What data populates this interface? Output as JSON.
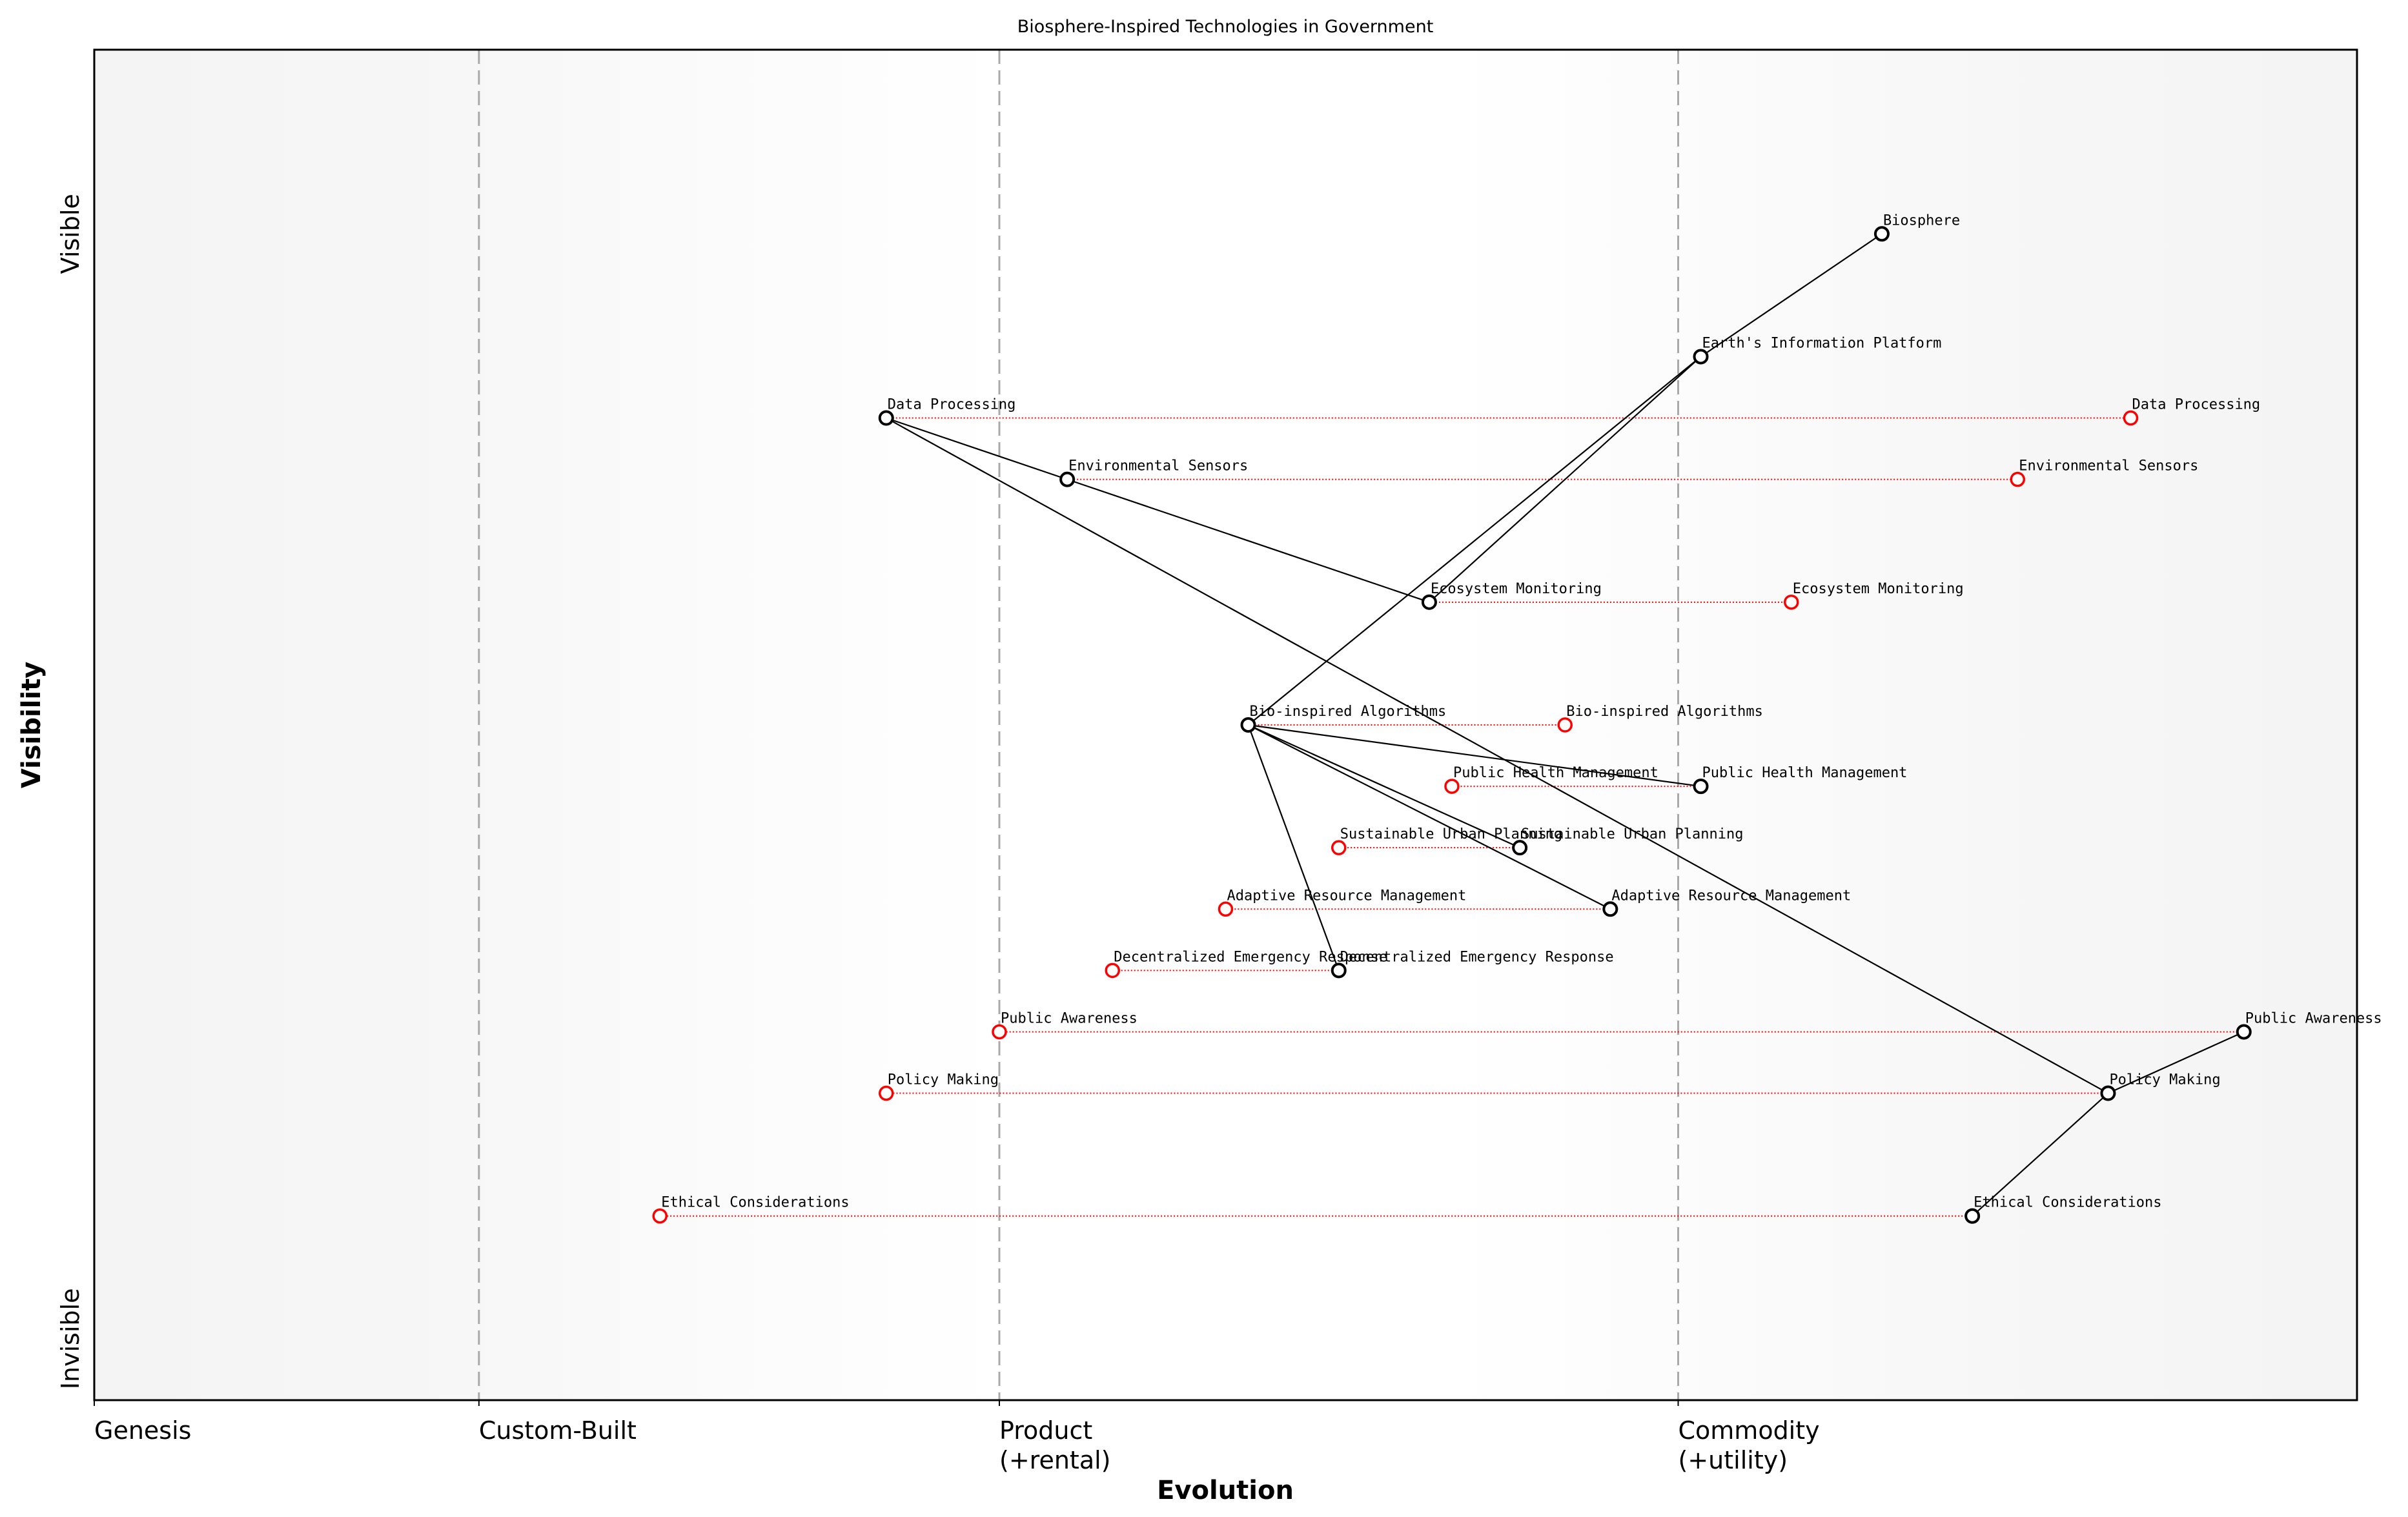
{
  "chart_data": {
    "type": "scatter",
    "title": "Biosphere-Inspired Technologies in Government",
    "xlabel": "Evolution",
    "ylabel": "Visibility",
    "xlim": [
      0,
      1
    ],
    "ylim": [
      0,
      1.1
    ],
    "grid": false,
    "x_ticks": [
      {
        "value": 0,
        "label": "Genesis"
      },
      {
        "value": 0.17,
        "label": "Custom-Built"
      },
      {
        "value": 0.4,
        "label": "Product\n(+rental)"
      },
      {
        "value": 0.7,
        "label": "Commodity\n(+utility)"
      }
    ],
    "y_ticks": [
      {
        "value": 0.95,
        "label": "Visible"
      },
      {
        "value": 0.05,
        "label": "Invisible"
      }
    ],
    "stage_lines": [
      0.17,
      0.4,
      0.7
    ],
    "colors": {
      "component": "#000000",
      "evolved": "#ff0000",
      "stage_line": "#aaaaaa",
      "background_edge": "#f4f4f4",
      "background_center": "#ffffff"
    },
    "components": [
      {
        "name": "Biosphere",
        "evolution": 0.79,
        "visibility": 0.95
      },
      {
        "name": "Earth's Information Platform",
        "evolution": 0.71,
        "visibility": 0.85,
        "evolved_to": null
      },
      {
        "name": "Data Processing",
        "evolution": 0.35,
        "visibility": 0.8,
        "evolved_to": 0.9
      },
      {
        "name": "Environmental Sensors",
        "evolution": 0.43,
        "visibility": 0.75,
        "evolved_to": 0.85
      },
      {
        "name": "Ecosystem Monitoring",
        "evolution": 0.59,
        "visibility": 0.65,
        "evolved_to": 0.75
      },
      {
        "name": "Bio-inspired Algorithms",
        "evolution": 0.51,
        "visibility": 0.55,
        "evolved_to": 0.65
      },
      {
        "name": "Public Health Management",
        "evolution": 0.71,
        "visibility": 0.5,
        "evolved_to": 0.6
      },
      {
        "name": "Sustainable Urban Planning",
        "evolution": 0.63,
        "visibility": 0.45,
        "evolved_to": 0.55
      },
      {
        "name": "Adaptive Resource Management",
        "evolution": 0.67,
        "visibility": 0.4,
        "evolved_to": 0.5
      },
      {
        "name": "Decentralized Emergency Response",
        "evolution": 0.55,
        "visibility": 0.35,
        "evolved_to": 0.45
      },
      {
        "name": "Public Awareness",
        "evolution": 0.95,
        "visibility": 0.3,
        "evolved_to": 0.4
      },
      {
        "name": "Policy Making",
        "evolution": 0.89,
        "visibility": 0.25,
        "evolved_to": 0.35
      },
      {
        "name": "Ethical Considerations",
        "evolution": 0.83,
        "visibility": 0.15,
        "evolved_to": 0.25
      }
    ],
    "links": [
      [
        "Biosphere",
        "Earth's Information Platform"
      ],
      [
        "Earth's Information Platform",
        "Ecosystem Monitoring"
      ],
      [
        "Earth's Information Platform",
        "Bio-inspired Algorithms"
      ],
      [
        "Data Processing",
        "Environmental Sensors"
      ],
      [
        "Data Processing",
        "Policy Making"
      ],
      [
        "Environmental Sensors",
        "Ecosystem Monitoring"
      ],
      [
        "Bio-inspired Algorithms",
        "Public Health Management"
      ],
      [
        "Bio-inspired Algorithms",
        "Sustainable Urban Planning"
      ],
      [
        "Bio-inspired Algorithms",
        "Adaptive Resource Management"
      ],
      [
        "Bio-inspired Algorithms",
        "Decentralized Emergency Response"
      ],
      [
        "Policy Making",
        "Public Awareness"
      ],
      [
        "Policy Making",
        "Ethical Considerations"
      ]
    ]
  }
}
